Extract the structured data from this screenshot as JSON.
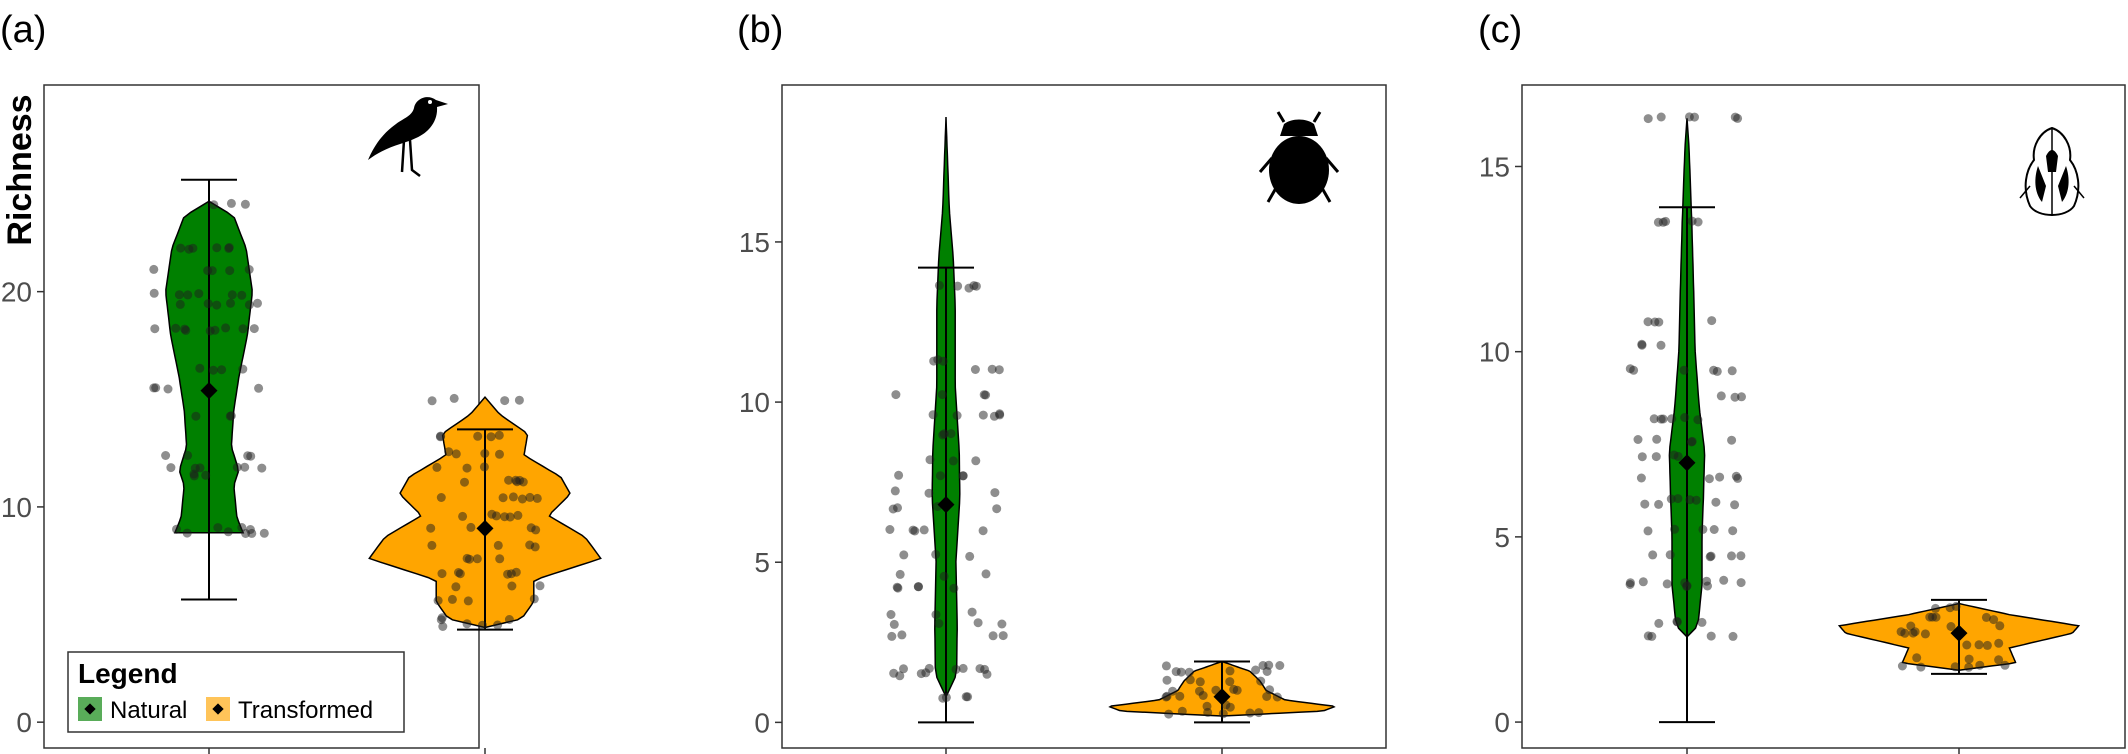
{
  "chart_data": [
    {
      "type": "violin",
      "panel_label": "(a)",
      "ylabel": "Richness",
      "icon": "bird-silhouette-icon",
      "ylim": [
        -1.2,
        29.6
      ],
      "yticks": [
        0,
        10,
        20
      ],
      "categories": [
        "Natural",
        "Transformed"
      ],
      "series": [
        {
          "name": "Natural",
          "color": "#008000",
          "mean": 15.4,
          "whisker": [
            5.7,
            25.2
          ],
          "range": [
            8.8,
            24.2
          ],
          "density": [
            [
              8.8,
              0.55
            ],
            [
              9.5,
              0.45
            ],
            [
              11.0,
              0.4
            ],
            [
              11.7,
              0.48
            ],
            [
              12.8,
              0.36
            ],
            [
              14.5,
              0.4
            ],
            [
              16.0,
              0.48
            ],
            [
              18.0,
              0.62
            ],
            [
              20.0,
              0.7
            ],
            [
              22.0,
              0.6
            ],
            [
              23.5,
              0.4
            ],
            [
              24.2,
              0.0
            ]
          ],
          "point_levels": [
            8.8,
            9.0,
            11.5,
            11.8,
            12.4,
            14.2,
            15.5,
            16.4,
            18.2,
            18.3,
            19.4,
            19.9,
            21.0,
            22.0,
            24.1
          ]
        },
        {
          "name": "Transformed",
          "color": "#FFA500",
          "mean": 9.0,
          "whisker": [
            4.3,
            13.6
          ],
          "range": [
            4.4,
            15.1
          ],
          "density": [
            [
              4.4,
              0.0
            ],
            [
              4.8,
              0.3
            ],
            [
              5.6,
              0.4
            ],
            [
              6.6,
              0.4
            ],
            [
              7.6,
              0.95
            ],
            [
              8.6,
              0.82
            ],
            [
              9.6,
              0.52
            ],
            [
              10.6,
              0.7
            ],
            [
              11.4,
              0.62
            ],
            [
              12.4,
              0.32
            ],
            [
              13.4,
              0.35
            ],
            [
              14.3,
              0.12
            ],
            [
              15.1,
              0.0
            ]
          ],
          "point_levels": [
            4.5,
            4.8,
            5.7,
            6.3,
            6.9,
            7.6,
            8.2,
            9.0,
            9.6,
            10.4,
            11.2,
            11.8,
            12.5,
            13.3,
            15.0
          ]
        }
      ]
    },
    {
      "type": "violin",
      "panel_label": "(b)",
      "icon": "beetle-silhouette-icon",
      "ylim": [
        -0.8,
        19.9
      ],
      "yticks": [
        0,
        5,
        10,
        15
      ],
      "categories": [
        "Natural",
        "Transformed"
      ],
      "series": [
        {
          "name": "Natural",
          "color": "#008000",
          "mean": 6.8,
          "whisker": [
            0.0,
            14.2
          ],
          "range": [
            0.8,
            18.9
          ],
          "density": [
            [
              0.8,
              0.0
            ],
            [
              1.5,
              0.16
            ],
            [
              3.0,
              0.17
            ],
            [
              5.0,
              0.15
            ],
            [
              7.0,
              0.21
            ],
            [
              8.5,
              0.2
            ],
            [
              10.5,
              0.14
            ],
            [
              13.0,
              0.14
            ],
            [
              14.5,
              0.11
            ],
            [
              16.0,
              0.05
            ],
            [
              18.9,
              0.0
            ]
          ],
          "point_levels": [
            0.8,
            1.5,
            1.7,
            2.7,
            3.1,
            3.4,
            4.2,
            4.6,
            5.2,
            6.0,
            6.7,
            7.2,
            7.7,
            8.2,
            9.0,
            9.6,
            10.2,
            11.0,
            11.3,
            13.6
          ]
        },
        {
          "name": "Transformed",
          "color": "#FFA500",
          "mean": 0.8,
          "whisker": [
            0.0,
            1.9
          ],
          "range": [
            0.2,
            1.9
          ],
          "density": [
            [
              0.2,
              0.0
            ],
            [
              0.35,
              0.8
            ],
            [
              0.5,
              0.9
            ],
            [
              0.7,
              0.5
            ],
            [
              1.0,
              0.35
            ],
            [
              1.3,
              0.3
            ],
            [
              1.6,
              0.22
            ],
            [
              1.9,
              0.0
            ]
          ],
          "point_levels": [
            0.3,
            0.5,
            0.8,
            1.0,
            1.3,
            1.6,
            1.8
          ]
        }
      ]
    },
    {
      "type": "violin",
      "panel_label": "(c)",
      "icon": "insect-line-drawing-icon",
      "ylim": [
        -0.7,
        17.2
      ],
      "yticks": [
        0,
        5,
        10,
        15
      ],
      "categories": [
        "Natural",
        "Transformed"
      ],
      "series": [
        {
          "name": "Natural",
          "color": "#008000",
          "mean": 7.0,
          "whisker": [
            0.0,
            13.9
          ],
          "range": [
            2.3,
            16.3
          ],
          "density": [
            [
              2.3,
              0.0
            ],
            [
              2.6,
              0.16
            ],
            [
              3.7,
              0.22
            ],
            [
              5.0,
              0.22
            ],
            [
              6.0,
              0.24
            ],
            [
              7.3,
              0.26
            ],
            [
              8.5,
              0.18
            ],
            [
              10.0,
              0.12
            ],
            [
              11.5,
              0.1
            ],
            [
              13.5,
              0.07
            ],
            [
              15.5,
              0.03
            ],
            [
              16.3,
              0.0
            ]
          ],
          "point_levels": [
            2.3,
            2.7,
            3.7,
            3.8,
            4.5,
            5.2,
            5.9,
            6.0,
            6.6,
            7.2,
            7.6,
            8.2,
            8.8,
            9.5,
            10.2,
            10.8,
            13.5,
            16.3
          ]
        },
        {
          "name": "Transformed",
          "color": "#FFA500",
          "mean": 2.4,
          "whisker": [
            1.3,
            3.3
          ],
          "range": [
            1.4,
            3.2
          ],
          "density": [
            [
              1.4,
              0.0
            ],
            [
              1.6,
              0.45
            ],
            [
              2.0,
              0.4
            ],
            [
              2.4,
              0.9
            ],
            [
              2.6,
              0.95
            ],
            [
              2.9,
              0.4
            ],
            [
              3.2,
              0.0
            ]
          ],
          "point_levels": [
            1.5,
            1.7,
            2.1,
            2.4,
            2.6,
            2.8,
            3.1
          ]
        }
      ]
    }
  ],
  "legend": {
    "title": "Legend",
    "position": "bottom-left",
    "items": [
      {
        "label": "Natural",
        "color": "#008000"
      },
      {
        "label": "Transformed",
        "color": "#FFA500"
      }
    ]
  }
}
